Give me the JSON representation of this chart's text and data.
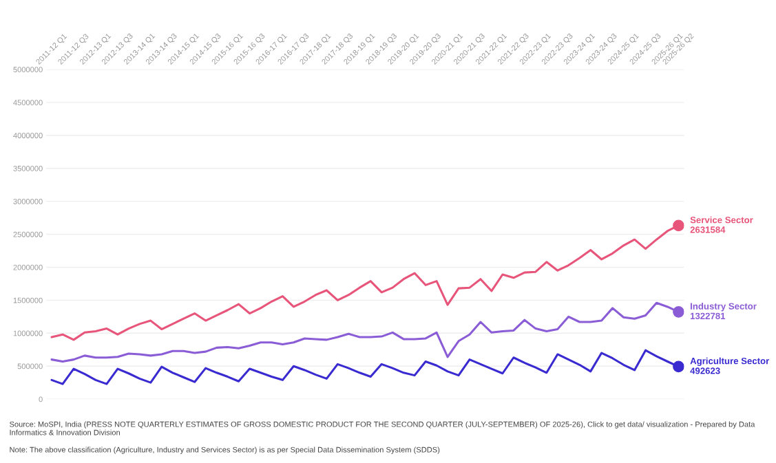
{
  "chart_data": {
    "type": "line",
    "categories": [
      "2011-12 Q1",
      null,
      "2011-12 Q3",
      null,
      "2012-13 Q1",
      null,
      "2012-13 Q3",
      null,
      "2013-14 Q1",
      null,
      "2013-14 Q3",
      null,
      "2014-15 Q1",
      null,
      "2014-15 Q3",
      null,
      "2015-16 Q1",
      null,
      "2015-16 Q3",
      null,
      "2016-17 Q1",
      null,
      "2016-17 Q3",
      null,
      "2017-18 Q1",
      null,
      "2017-18 Q3",
      null,
      "2018-19 Q1",
      null,
      "2018-19 Q3",
      null,
      "2019-20 Q1",
      null,
      "2019-20 Q3",
      null,
      "2020-21 Q1",
      null,
      "2020-21 Q3",
      null,
      "2021-22 Q1",
      null,
      "2021-22 Q3",
      null,
      "2022-23 Q1",
      null,
      "2022-23 Q3",
      null,
      "2023-24 Q1",
      null,
      "2023-24 Q3",
      null,
      "2024-25 Q1",
      null,
      "2024-25 Q3",
      null,
      "2025-26 Q1",
      "2025-26 Q2"
    ],
    "series": [
      {
        "name": "Service Sector",
        "color": "#e8557a",
        "values": [
          940000,
          980000,
          900000,
          1010000,
          1030000,
          1070000,
          980000,
          1070000,
          1140000,
          1190000,
          1060000,
          1140000,
          1220000,
          1300000,
          1190000,
          1270000,
          1350000,
          1440000,
          1300000,
          1380000,
          1480000,
          1560000,
          1400000,
          1480000,
          1580000,
          1650000,
          1500000,
          1580000,
          1690000,
          1790000,
          1620000,
          1690000,
          1820000,
          1910000,
          1730000,
          1790000,
          1430000,
          1680000,
          1690000,
          1820000,
          1640000,
          1890000,
          1840000,
          1920000,
          1930000,
          2080000,
          1950000,
          2030000,
          2140000,
          2260000,
          2120000,
          2210000,
          2330000,
          2420000,
          2280000,
          2420000,
          2550000,
          2631584
        ],
        "value_labels": [
          null,
          null,
          null,
          null,
          null,
          null,
          null,
          null,
          null,
          null,
          null,
          null,
          null,
          null,
          null,
          null,
          null,
          null,
          null,
          null,
          null,
          null,
          null,
          null,
          null,
          null,
          null,
          null,
          null,
          null,
          null,
          null,
          null,
          null,
          null,
          null,
          null,
          null,
          null,
          null,
          null,
          null,
          null,
          null,
          null,
          null,
          null,
          null,
          null,
          null,
          null,
          null,
          null,
          null,
          null,
          null,
          null,
          "2631584"
        ]
      },
      {
        "name": "Industry Sector",
        "color": "#8a5cd6",
        "values": [
          600000,
          570000,
          600000,
          660000,
          630000,
          630000,
          640000,
          690000,
          680000,
          660000,
          680000,
          730000,
          730000,
          700000,
          720000,
          780000,
          790000,
          770000,
          810000,
          860000,
          860000,
          830000,
          860000,
          920000,
          910000,
          900000,
          940000,
          990000,
          940000,
          940000,
          950000,
          1010000,
          910000,
          910000,
          920000,
          1010000,
          640000,
          880000,
          980000,
          1170000,
          1010000,
          1030000,
          1040000,
          1200000,
          1070000,
          1030000,
          1060000,
          1250000,
          1170000,
          1170000,
          1190000,
          1380000,
          1240000,
          1220000,
          1270000,
          1460000,
          1400000,
          1322781
        ],
        "value_labels": [
          null,
          null,
          null,
          null,
          null,
          null,
          null,
          null,
          null,
          null,
          null,
          null,
          null,
          null,
          null,
          null,
          null,
          null,
          null,
          null,
          null,
          null,
          null,
          null,
          null,
          null,
          null,
          null,
          null,
          null,
          null,
          null,
          null,
          null,
          null,
          null,
          null,
          null,
          null,
          null,
          null,
          null,
          null,
          null,
          null,
          null,
          null,
          null,
          null,
          null,
          null,
          null,
          null,
          null,
          null,
          null,
          null,
          "1322781"
        ]
      },
      {
        "name": "Agriculture Sector",
        "color": "#3a2bd1",
        "values": [
          290000,
          230000,
          460000,
          380000,
          290000,
          230000,
          460000,
          390000,
          310000,
          250000,
          490000,
          400000,
          330000,
          260000,
          470000,
          400000,
          340000,
          270000,
          460000,
          400000,
          340000,
          290000,
          500000,
          440000,
          370000,
          310000,
          530000,
          470000,
          400000,
          340000,
          530000,
          470000,
          400000,
          360000,
          570000,
          510000,
          420000,
          360000,
          600000,
          530000,
          460000,
          390000,
          630000,
          550000,
          480000,
          400000,
          680000,
          600000,
          520000,
          420000,
          700000,
          620000,
          520000,
          440000,
          740000,
          650000,
          570000,
          492623
        ],
        "value_labels": [
          null,
          null,
          null,
          null,
          null,
          null,
          null,
          null,
          null,
          null,
          null,
          null,
          null,
          null,
          null,
          null,
          null,
          null,
          null,
          null,
          null,
          null,
          null,
          null,
          null,
          null,
          null,
          null,
          null,
          null,
          null,
          null,
          null,
          null,
          null,
          null,
          null,
          null,
          null,
          null,
          null,
          null,
          null,
          null,
          null,
          null,
          null,
          null,
          null,
          null,
          null,
          null,
          null,
          null,
          null,
          null,
          null,
          "492623"
        ]
      }
    ],
    "ylim": [
      0,
      5000000
    ],
    "yticks": [
      0,
      500000,
      1000000,
      1500000,
      2000000,
      2500000,
      3000000,
      3500000,
      4000000,
      4500000,
      5000000
    ],
    "grid": "y",
    "legend": "right",
    "line_style": "solid",
    "annotations": [
      "Source: MoSPI, India (PRESS NOTE QUARTERLY ESTIMATES OF GROSS DOMESTIC PRODUCT FOR THE SECOND QUARTER (JULY-SEPTEMBER) OF 2025-26), Click to get data/ visualization - Prepared by Data Informatics & Innovation Division",
      "Note: The above classification (Agriculture, Industry and Services Sector) is as per Special Data Dissemination System (SDDS)"
    ]
  }
}
